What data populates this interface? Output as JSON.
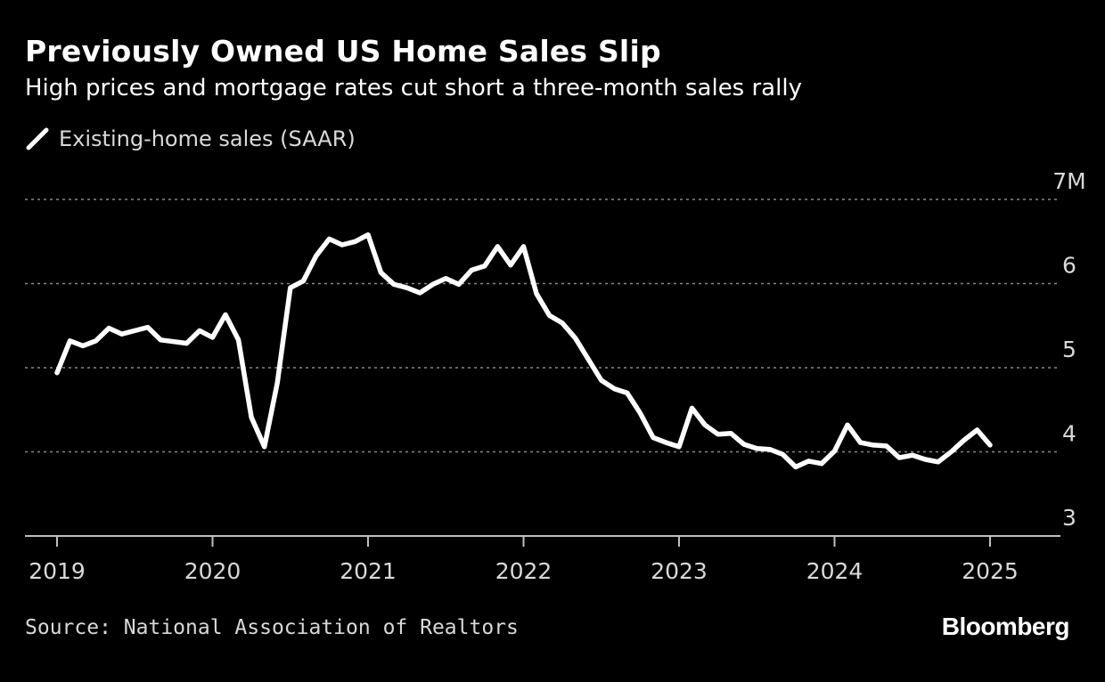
{
  "title": "Previously Owned US Home Sales Slip",
  "subtitle": "High prices and mortgage rates cut short a three-month sales rally",
  "legend_label": "Existing-home sales (SAAR)",
  "source": "Source: National Association of Realtors",
  "brand": "Bloomberg",
  "colors": {
    "background": "#000000",
    "line": "#ffffff",
    "grid": "#888888",
    "text": "#d9d9d9"
  },
  "chart_data": {
    "type": "line",
    "title": "Previously Owned US Home Sales Slip",
    "subtitle": "High prices and mortgage rates cut short a three-month sales rally",
    "xlabel": "",
    "ylabel": "",
    "ylim": [
      3,
      7
    ],
    "yticks": [
      3,
      4,
      5,
      6,
      7
    ],
    "ytick_labels": [
      "3",
      "4",
      "5",
      "6",
      "7M"
    ],
    "xlim": [
      "2018-12",
      "2025-07"
    ],
    "xticks": [
      "2019-01",
      "2020-01",
      "2021-01",
      "2022-01",
      "2023-01",
      "2024-01",
      "2025-01"
    ],
    "xtick_labels": [
      "2019",
      "2020",
      "2021",
      "2022",
      "2023",
      "2024",
      "2025"
    ],
    "grid": "horizontal dashed",
    "legend_position": "top-left",
    "series": [
      {
        "name": "Existing-home sales (SAAR)",
        "x": [
          "2019-01",
          "2019-02",
          "2019-03",
          "2019-04",
          "2019-05",
          "2019-06",
          "2019-07",
          "2019-08",
          "2019-09",
          "2019-10",
          "2019-11",
          "2019-12",
          "2020-01",
          "2020-02",
          "2020-03",
          "2020-04",
          "2020-05",
          "2020-06",
          "2020-07",
          "2020-08",
          "2020-09",
          "2020-10",
          "2020-11",
          "2020-12",
          "2021-01",
          "2021-02",
          "2021-03",
          "2021-04",
          "2021-05",
          "2021-06",
          "2021-07",
          "2021-08",
          "2021-09",
          "2021-10",
          "2021-11",
          "2021-12",
          "2022-01",
          "2022-02",
          "2022-03",
          "2022-04",
          "2022-05",
          "2022-06",
          "2022-07",
          "2022-08",
          "2022-09",
          "2022-10",
          "2022-11",
          "2022-12",
          "2023-01",
          "2023-02",
          "2023-03",
          "2023-04",
          "2023-05",
          "2023-06",
          "2023-07",
          "2023-08",
          "2023-09",
          "2023-10",
          "2023-11",
          "2023-12",
          "2024-01",
          "2024-02",
          "2024-03",
          "2024-04",
          "2024-05",
          "2024-06",
          "2024-07",
          "2024-08",
          "2024-09",
          "2024-10",
          "2024-11",
          "2024-12",
          "2025-01"
        ],
        "values": [
          4.94,
          5.32,
          5.26,
          5.32,
          5.47,
          5.4,
          5.44,
          5.48,
          5.33,
          5.31,
          5.29,
          5.44,
          5.36,
          5.63,
          5.33,
          4.41,
          4.06,
          4.82,
          5.95,
          6.03,
          6.33,
          6.53,
          6.46,
          6.5,
          6.58,
          6.13,
          5.99,
          5.95,
          5.89,
          5.99,
          6.06,
          5.99,
          6.16,
          6.21,
          6.44,
          6.22,
          6.44,
          5.88,
          5.62,
          5.53,
          5.35,
          5.1,
          4.85,
          4.75,
          4.7,
          4.46,
          4.17,
          4.11,
          4.06,
          4.52,
          4.32,
          4.21,
          4.22,
          4.09,
          4.04,
          4.03,
          3.97,
          3.82,
          3.89,
          3.86,
          4.01,
          4.32,
          4.11,
          4.08,
          4.07,
          3.93,
          3.96,
          3.91,
          3.88,
          4.0,
          4.14,
          4.26,
          4.08
        ]
      }
    ]
  }
}
